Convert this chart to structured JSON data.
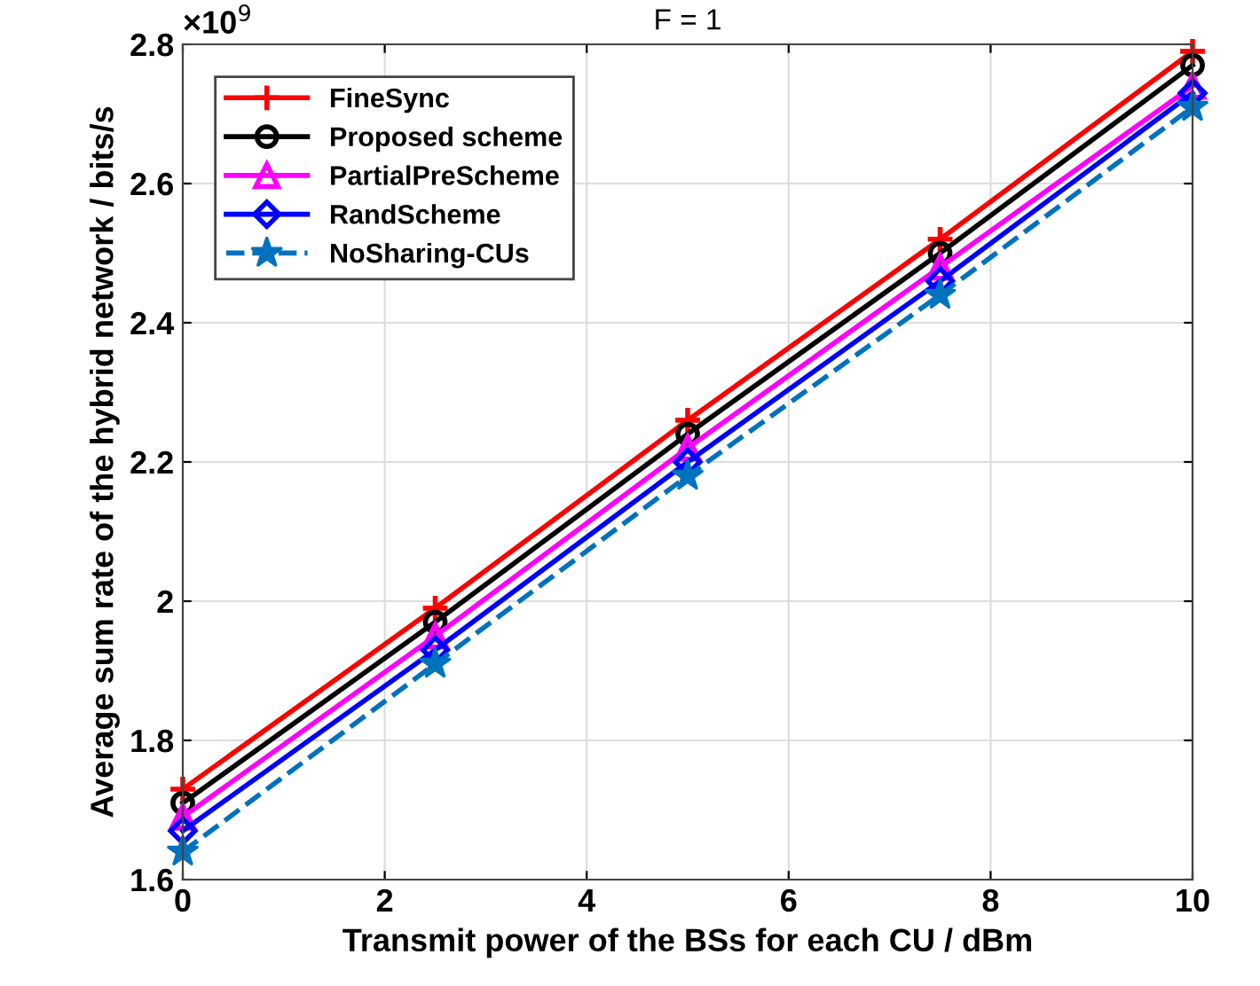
{
  "chart_data": {
    "type": "line",
    "title": "F = 1",
    "xlabel": "Transmit power of the BSs for each CU / dBm",
    "ylabel": "Average sum rate of the hybrid network / bits/s",
    "annotations": [
      "×10$^{9}$"
    ],
    "x": [
      0,
      2.5,
      5,
      7.5,
      10
    ],
    "series": [
      {
        "name": "FineSync",
        "color": "#ff0000",
        "marker": "cross",
        "line_style": "solid",
        "values": [
          1.73,
          1.99,
          2.26,
          2.52,
          2.79
        ]
      },
      {
        "name": "Proposed scheme",
        "color": "#000000",
        "marker": "circle",
        "line_style": "solid",
        "values": [
          1.71,
          1.97,
          2.24,
          2.5,
          2.77
        ]
      },
      {
        "name": "PartialPreScheme",
        "color": "#ff00ff",
        "marker": "triangle",
        "line_style": "solid",
        "values": [
          1.69,
          1.95,
          2.22,
          2.48,
          2.74
        ]
      },
      {
        "name": "RandScheme",
        "color": "#0000ff",
        "marker": "diamond",
        "line_style": "solid",
        "values": [
          1.67,
          1.93,
          2.2,
          2.46,
          2.73
        ]
      },
      {
        "name": "NoSharing-CUs",
        "color": "#0072bd",
        "marker": "star",
        "line_style": "dashed",
        "values": [
          1.64,
          1.91,
          2.18,
          2.44,
          2.71
        ]
      }
    ],
    "xlim": [
      0,
      10
    ],
    "xticks": [
      0,
      2,
      4,
      6,
      8,
      10
    ],
    "ylim": [
      1.6,
      2.8
    ],
    "yticks": [
      1.6,
      1.8,
      2,
      2.2,
      2.4,
      2.6,
      2.8
    ],
    "grid": true,
    "legend": "top left"
  }
}
